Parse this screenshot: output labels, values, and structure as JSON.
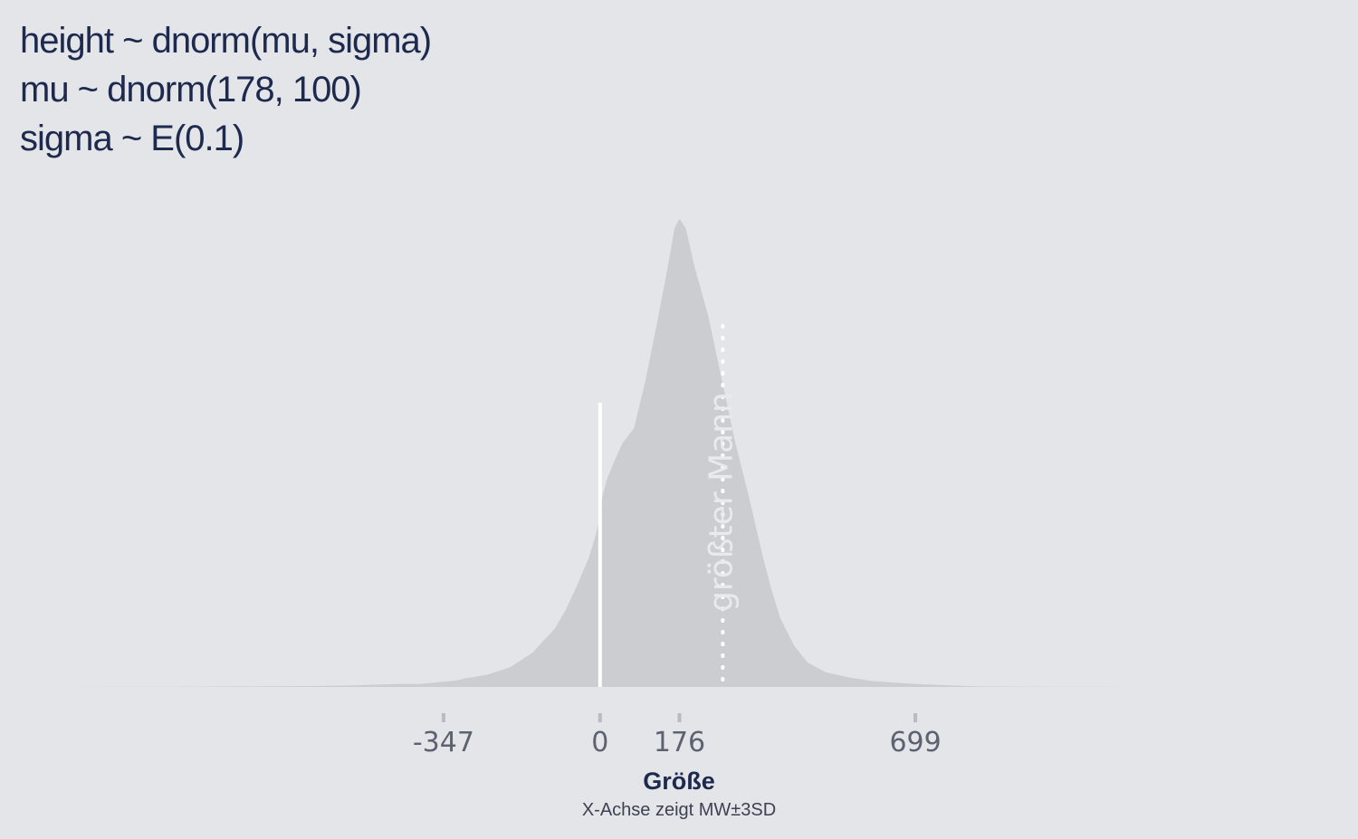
{
  "chart_data": {
    "type": "area",
    "title_lines": [
      "height ~ dnorm(mu, sigma)",
      "mu ~ dnorm(178, 100)",
      "sigma ~ E(0.1)"
    ],
    "xlabel": "Größe",
    "x_subtitle": "X-Achse zeigt MW±3SD",
    "x_ticks": [
      -347,
      0,
      176,
      699
    ],
    "xlim": [
      -1250,
      1600
    ],
    "reference_lines": [
      {
        "x": 0,
        "label": ""
      },
      {
        "x": 272,
        "label": "größter Mann"
      }
    ],
    "density_curve": {
      "x": [
        -1250,
        -900,
        -700,
        -550,
        -450,
        -400,
        -347,
        -320,
        -300,
        -250,
        -200,
        -150,
        -100,
        -75,
        -50,
        -25,
        -10,
        -5,
        0,
        5,
        15,
        30,
        50,
        75,
        100,
        125,
        150,
        165,
        176,
        190,
        210,
        240,
        270,
        300,
        330,
        360,
        380,
        400,
        430,
        460,
        500,
        550,
        600,
        650,
        699,
        750,
        800,
        850,
        950,
        1100,
        1300,
        1600
      ],
      "y": [
        0,
        0.0008,
        0.003,
        0.006,
        0.012,
        0.012,
        0.022,
        0.026,
        0.035,
        0.05,
        0.08,
        0.14,
        0.24,
        0.32,
        0.42,
        0.53,
        0.62,
        0.66,
        0.7,
        0.78,
        0.85,
        0.92,
        1.0,
        1.06,
        1.25,
        1.48,
        1.72,
        1.88,
        1.92,
        1.88,
        1.72,
        1.52,
        1.26,
        1.0,
        0.78,
        0.54,
        0.4,
        0.28,
        0.17,
        0.1,
        0.06,
        0.04,
        0.025,
        0.018,
        0.012,
        0.008,
        0.005,
        0.002,
        0.0008,
        0.0003,
        0.0001,
        0
      ]
    },
    "ylim": [
      0,
      2.0
    ],
    "grid": false,
    "legend": "none",
    "colors": {
      "background": "#e4e5e9",
      "fill": "#cccdd1",
      "reference_line": "#ffffff",
      "tick": "#b9bbc2",
      "title_text": "#1d2a4d",
      "tick_text": "#5d6270"
    }
  }
}
